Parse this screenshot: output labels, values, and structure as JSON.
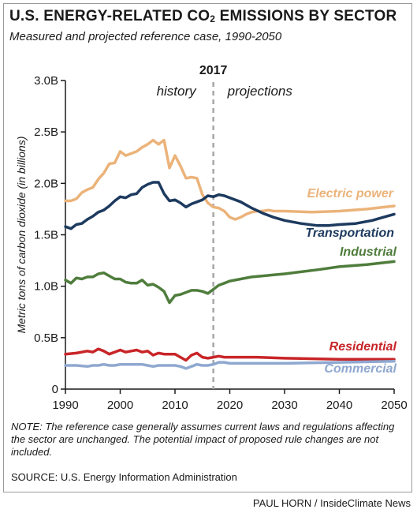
{
  "header": {
    "title_main": "U.S. ENERGY-RELATED CO",
    "title_sub": "2",
    "title_end": " EMISSIONS BY SECTOR",
    "subtitle": "Measured and projected reference case, 1990-2050"
  },
  "chart_data": {
    "type": "line",
    "ylabel": "Metric tons of carbon dioxide (in billions)",
    "xlim": [
      1990,
      2050
    ],
    "ylim": [
      0,
      3.0
    ],
    "x_ticks": [
      "1990",
      "2000",
      "2010",
      "2020",
      "2030",
      "2040",
      "2050"
    ],
    "y_ticks": [
      "0",
      "0.5B",
      "1.0B",
      "1.5B",
      "2.0B",
      "2.5B",
      "3.0B"
    ],
    "y_tick_values": [
      0,
      0.5,
      1.0,
      1.5,
      2.0,
      2.5,
      3.0
    ],
    "divider": {
      "x": 2017,
      "label": "2017",
      "left_label": "history",
      "right_label": "projections"
    },
    "series": [
      {
        "name": "Electric power",
        "color": "#ebb37a",
        "x": [
          1990,
          1991,
          1992,
          1993,
          1994,
          1995,
          1996,
          1997,
          1998,
          1999,
          2000,
          2001,
          2002,
          2003,
          2004,
          2005,
          2006,
          2007,
          2008,
          2009,
          2010,
          2011,
          2012,
          2013,
          2014,
          2015,
          2016,
          2017,
          2018,
          2019,
          2020,
          2021,
          2022,
          2023,
          2024,
          2025,
          2026,
          2027,
          2028,
          2029,
          2030,
          2035,
          2040,
          2045,
          2050
        ],
        "y": [
          1.83,
          1.83,
          1.85,
          1.91,
          1.94,
          1.96,
          2.04,
          2.1,
          2.19,
          2.2,
          2.31,
          2.27,
          2.29,
          2.31,
          2.35,
          2.38,
          2.42,
          2.38,
          2.42,
          2.15,
          2.27,
          2.17,
          2.05,
          2.06,
          2.05,
          1.89,
          1.81,
          1.77,
          1.76,
          1.73,
          1.67,
          1.65,
          1.67,
          1.7,
          1.72,
          1.73,
          1.73,
          1.74,
          1.73,
          1.73,
          1.73,
          1.72,
          1.73,
          1.75,
          1.78
        ]
      },
      {
        "name": "Transportation",
        "color": "#1d3a5f",
        "x": [
          1990,
          1991,
          1992,
          1993,
          1994,
          1995,
          1996,
          1997,
          1998,
          1999,
          2000,
          2001,
          2002,
          2003,
          2004,
          2005,
          2006,
          2007,
          2008,
          2009,
          2010,
          2011,
          2012,
          2013,
          2014,
          2015,
          2016,
          2017,
          2018,
          2019,
          2020,
          2022,
          2024,
          2026,
          2028,
          2030,
          2033,
          2036,
          2038,
          2040,
          2043,
          2046,
          2048,
          2050
        ],
        "y": [
          1.58,
          1.56,
          1.6,
          1.61,
          1.65,
          1.68,
          1.72,
          1.74,
          1.78,
          1.83,
          1.87,
          1.86,
          1.89,
          1.9,
          1.96,
          1.99,
          2.01,
          2.01,
          1.9,
          1.83,
          1.84,
          1.81,
          1.77,
          1.8,
          1.82,
          1.84,
          1.88,
          1.87,
          1.89,
          1.88,
          1.86,
          1.82,
          1.76,
          1.71,
          1.67,
          1.64,
          1.61,
          1.59,
          1.59,
          1.6,
          1.61,
          1.64,
          1.67,
          1.7
        ]
      },
      {
        "name": "Industrial",
        "color": "#4f7d3c",
        "x": [
          1990,
          1991,
          1992,
          1993,
          1994,
          1995,
          1996,
          1997,
          1998,
          1999,
          2000,
          2001,
          2002,
          2003,
          2004,
          2005,
          2006,
          2007,
          2008,
          2009,
          2010,
          2011,
          2012,
          2013,
          2014,
          2015,
          2016,
          2017,
          2018,
          2019,
          2020,
          2022,
          2024,
          2026,
          2028,
          2030,
          2033,
          2036,
          2040,
          2045,
          2050
        ],
        "y": [
          1.06,
          1.03,
          1.08,
          1.07,
          1.09,
          1.09,
          1.12,
          1.13,
          1.1,
          1.07,
          1.07,
          1.04,
          1.03,
          1.03,
          1.06,
          1.01,
          1.02,
          0.99,
          0.95,
          0.84,
          0.91,
          0.92,
          0.94,
          0.96,
          0.96,
          0.95,
          0.93,
          0.97,
          1.01,
          1.03,
          1.05,
          1.07,
          1.09,
          1.1,
          1.11,
          1.12,
          1.14,
          1.16,
          1.19,
          1.21,
          1.24
        ]
      },
      {
        "name": "Residential",
        "color": "#c82528",
        "x": [
          1990,
          1992,
          1994,
          1995,
          1996,
          1997,
          1998,
          1999,
          2000,
          2001,
          2002,
          2003,
          2004,
          2005,
          2006,
          2007,
          2008,
          2009,
          2010,
          2011,
          2012,
          2013,
          2014,
          2015,
          2016,
          2017,
          2018,
          2019,
          2020,
          2025,
          2030,
          2040,
          2050
        ],
        "y": [
          0.34,
          0.35,
          0.37,
          0.36,
          0.39,
          0.37,
          0.34,
          0.36,
          0.38,
          0.36,
          0.37,
          0.38,
          0.36,
          0.37,
          0.33,
          0.35,
          0.34,
          0.34,
          0.34,
          0.31,
          0.28,
          0.33,
          0.35,
          0.31,
          0.3,
          0.31,
          0.32,
          0.31,
          0.31,
          0.31,
          0.3,
          0.29,
          0.29
        ]
      },
      {
        "name": "Commercial",
        "color": "#8fa8d0",
        "x": [
          1990,
          1992,
          1994,
          1995,
          1996,
          1997,
          1998,
          1999,
          2000,
          2001,
          2002,
          2003,
          2004,
          2005,
          2006,
          2007,
          2008,
          2009,
          2010,
          2011,
          2012,
          2013,
          2014,
          2015,
          2016,
          2017,
          2018,
          2019,
          2020,
          2025,
          2030,
          2040,
          2050
        ],
        "y": [
          0.23,
          0.23,
          0.22,
          0.23,
          0.23,
          0.24,
          0.23,
          0.23,
          0.24,
          0.24,
          0.24,
          0.24,
          0.24,
          0.23,
          0.22,
          0.23,
          0.23,
          0.23,
          0.23,
          0.22,
          0.2,
          0.22,
          0.24,
          0.23,
          0.23,
          0.24,
          0.26,
          0.26,
          0.25,
          0.25,
          0.25,
          0.26,
          0.27
        ]
      }
    ]
  },
  "footer": {
    "note": "NOTE: The reference case generally assumes current laws and regulations affecting the sector are unchanged. The potential impact of proposed rule changes are not included.",
    "source": "SOURCE: U.S. Energy Information Administration",
    "credit": "PAUL HORN / InsideClimate News"
  }
}
